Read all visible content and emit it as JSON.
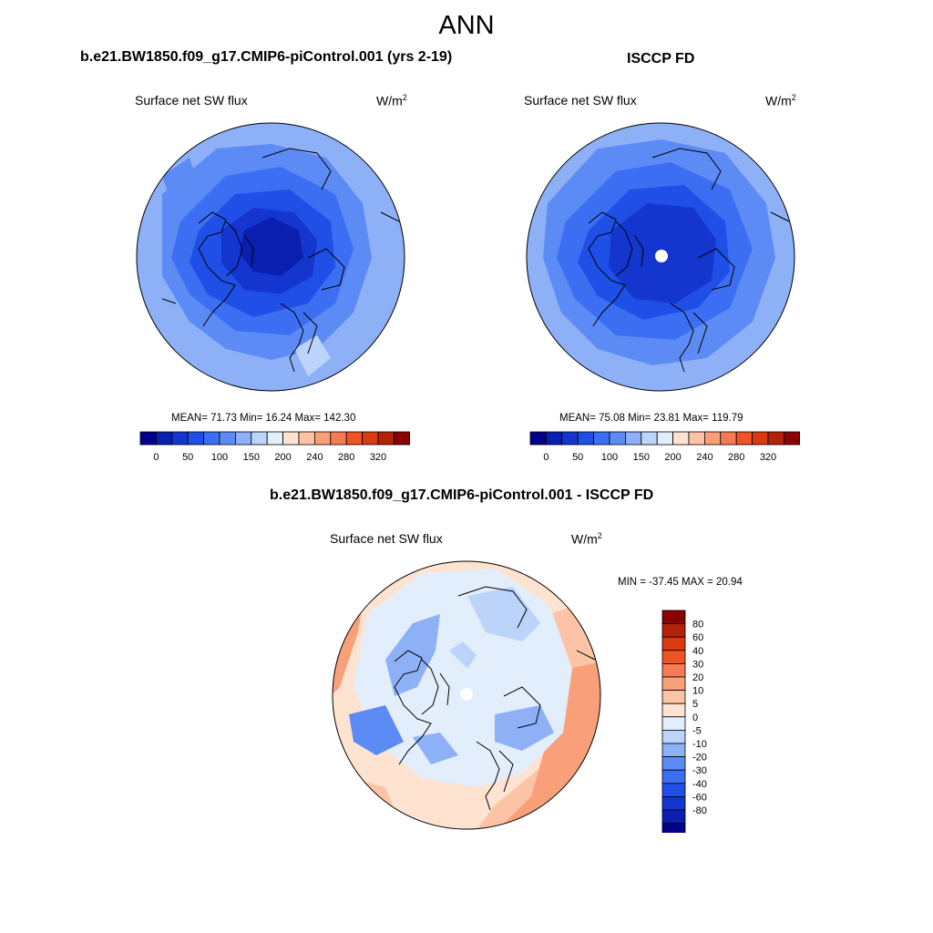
{
  "figure": {
    "title": "ANN",
    "panel_left": {
      "title": "b.e21.BW1850.f09_g17.CMIP6-piControl.001 (yrs 2-19)",
      "variable": "Surface net SW flux",
      "units_base": "W/m",
      "units_exp": "2",
      "stats": "MEAN=  71.73  Min=  16.24  Max= 142.30"
    },
    "panel_right": {
      "title": "ISCCP FD",
      "variable": "Surface net SW flux",
      "units_base": "W/m",
      "units_exp": "2",
      "stats": "MEAN=  75.08  Min=  23.81  Max= 119.79"
    },
    "panel_diff": {
      "title": "b.e21.BW1850.f09_g17.CMIP6-piControl.001 - ISCCP FD",
      "variable": "Surface net SW flux",
      "units_base": "W/m",
      "units_exp": "2",
      "stats": "MIN = -37.45 MAX =  20.94"
    }
  },
  "colorbar_main": {
    "colors": [
      "#00008b",
      "#0a1fb0",
      "#1436cf",
      "#1f4fe6",
      "#3b6ef2",
      "#5d8bf5",
      "#8eb0f7",
      "#bcd3fa",
      "#e3eefc",
      "#fde3d0",
      "#fcc3a6",
      "#f9a07b",
      "#f57b52",
      "#ee5424",
      "#d93a10",
      "#b32208",
      "#8b0000"
    ],
    "labels": [
      "0",
      "50",
      "100",
      "150",
      "200",
      "240",
      "280",
      "320"
    ]
  },
  "colorbar_diff": {
    "colors": [
      "#8b0000",
      "#b32208",
      "#d93a10",
      "#ee5424",
      "#f57b52",
      "#f9a07b",
      "#fcc3a6",
      "#fde3d0",
      "#e3eefc",
      "#bcd3fa",
      "#8eb0f7",
      "#5d8bf5",
      "#3b6ef2",
      "#1f4fe6",
      "#1436cf",
      "#0a1fb0",
      "#00008b"
    ],
    "labels": [
      "80",
      "60",
      "40",
      "30",
      "20",
      "10",
      "5",
      "0",
      "-5",
      "-10",
      "-20",
      "-30",
      "-40",
      "-60",
      "-80"
    ]
  }
}
